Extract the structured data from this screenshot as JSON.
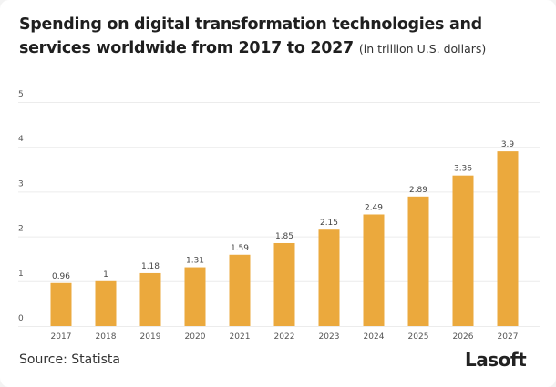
{
  "chart_data": {
    "type": "bar",
    "title": "Spending on digital transformation technologies and services worldwide from 2017 to 2027",
    "subtitle": "(in trillion U.S. dollars)",
    "categories": [
      "2017",
      "2018",
      "2019",
      "2020",
      "2021",
      "2022",
      "2023",
      "2024",
      "2025",
      "2026",
      "2027"
    ],
    "values": [
      0.96,
      1,
      1.18,
      1.31,
      1.59,
      1.85,
      2.15,
      2.49,
      2.89,
      3.36,
      3.9
    ],
    "data_labels": [
      "0.96",
      "1",
      "1.18",
      "1.31",
      "1.59",
      "1.85",
      "2.15",
      "2.49",
      "2.89",
      "3.36",
      "3.9"
    ],
    "xlabel": "",
    "ylabel": "",
    "ylim": [
      0,
      5
    ],
    "yticks": [
      "0",
      "1",
      "2",
      "3",
      "4",
      "5"
    ],
    "grid": true,
    "bar_color": "#EBA93D"
  },
  "footer": {
    "source": "Source: Statista",
    "logo": "Lasoft"
  }
}
